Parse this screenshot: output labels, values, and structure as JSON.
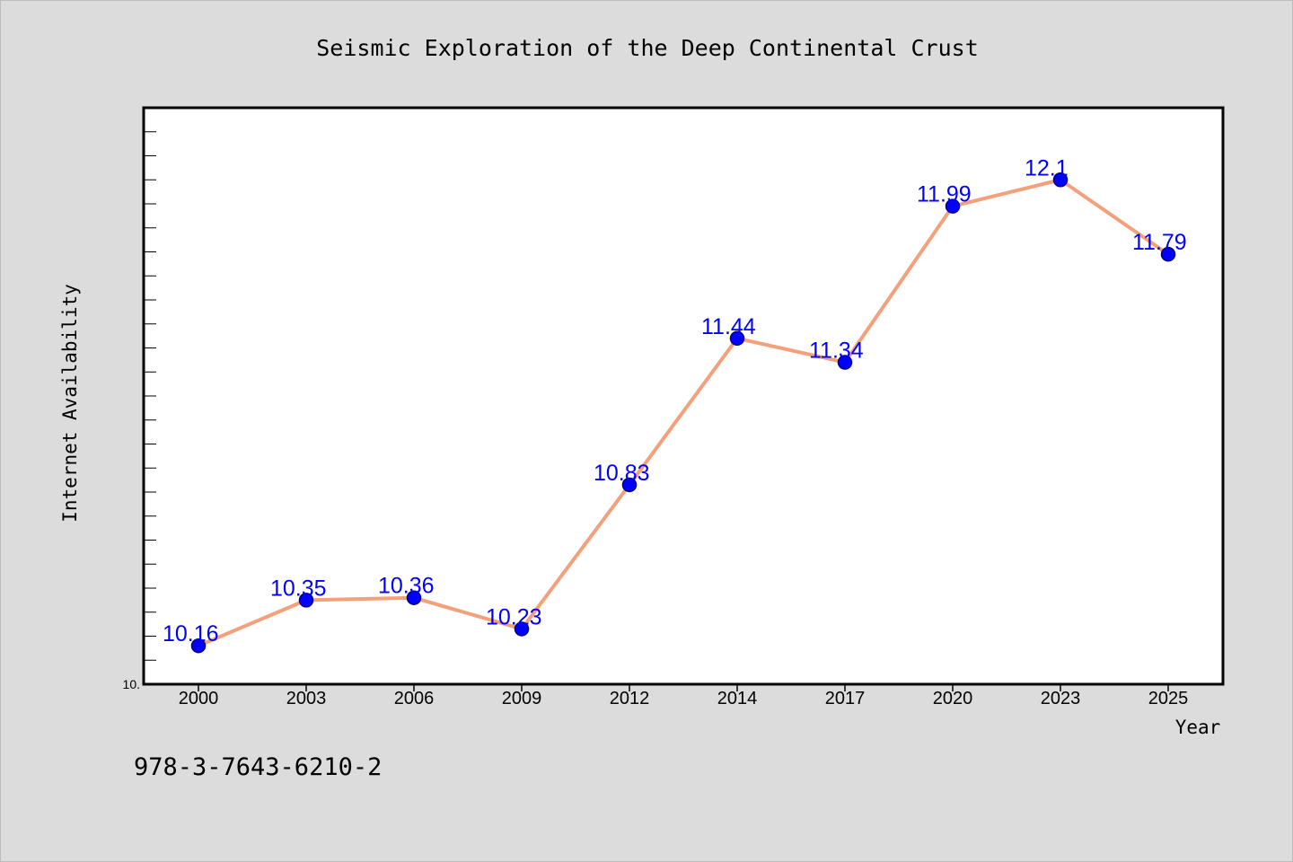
{
  "chart_data": {
    "type": "line",
    "title": "Seismic Exploration of the Deep Continental Crust",
    "xlabel": "Year",
    "ylabel": "Internet Availability",
    "categories": [
      "2000",
      "2003",
      "2006",
      "2009",
      "2012",
      "2014",
      "2017",
      "2020",
      "2023",
      "2025"
    ],
    "series": [
      {
        "values": [
          10.16,
          10.35,
          10.36,
          10.23,
          10.83,
          11.44,
          11.34,
          11.99,
          12.1,
          11.79
        ],
        "labels": [
          "10.16",
          "10.35",
          "10.36",
          "10.23",
          "10.83",
          "11.44",
          "11.34",
          "11.99",
          "12.1",
          "11.79"
        ]
      }
    ],
    "ylim": [
      10.0,
      12.4
    ],
    "y_minor_tick_step": 0.1,
    "y_tick_labels": [
      "10."
    ],
    "grid": false,
    "legend": "none",
    "colors": {
      "line": "#f4a07a",
      "marker_fill": "#0000ff",
      "marker_edge": "#000080",
      "data_label": "#0000ff",
      "plot_background": "#ffffff",
      "figure_background": "#dcdcdc"
    }
  },
  "footer_text": "978-3-7643-6210-2"
}
